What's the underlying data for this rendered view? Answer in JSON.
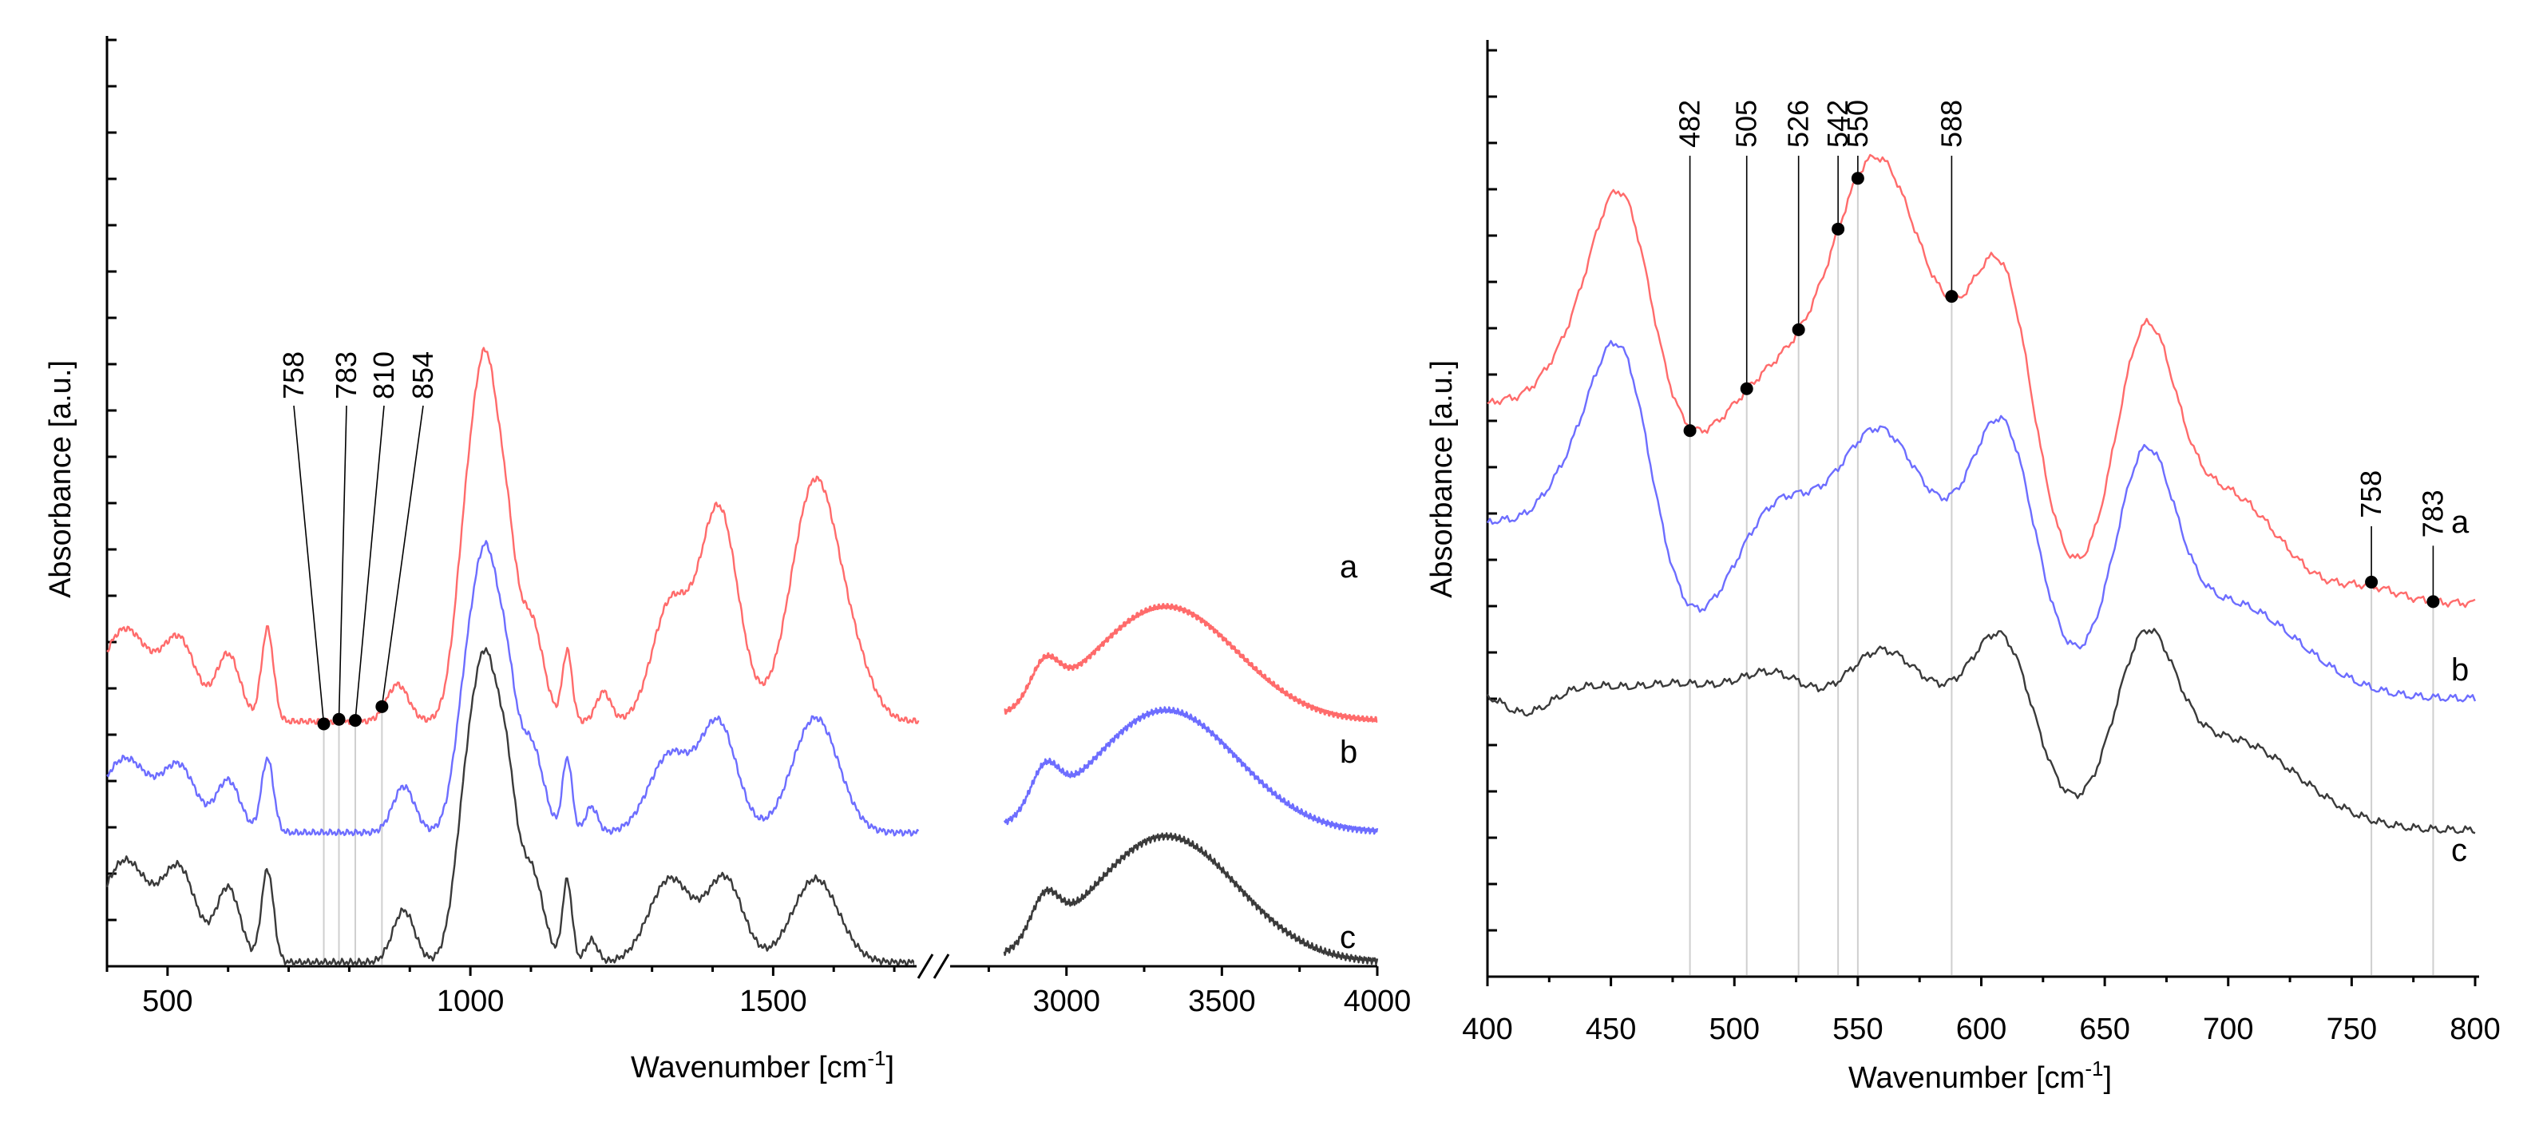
{
  "colors": {
    "a": "#ff6b6b",
    "b": "#6d6dff",
    "c": "#3a3a3a",
    "axis": "#000000",
    "guide": "#cfcfcf"
  },
  "chart_data": [
    {
      "type": "line",
      "title": "",
      "xlabel_main": "Wavenumber [cm",
      "xlabel_sup": "-1",
      "xlabel_end": "]",
      "ylabel": "Absorbance [a.u.]",
      "x_axis_break": true,
      "x_segments": [
        {
          "xlim": [
            400,
            1750
          ]
        },
        {
          "xlim": [
            2600,
            4000
          ]
        }
      ],
      "xticks": [
        "500",
        "1000",
        "1500",
        "3000",
        "3500",
        "4000"
      ],
      "series": [
        {
          "name": "a",
          "color": "#ff6b6b",
          "offset": 1.3,
          "bands": [
            [
              430,
              0.5,
              40
            ],
            [
              520,
              0.42,
              28
            ],
            [
              600,
              0.36,
              20
            ],
            [
              665,
              0.5,
              10
            ],
            [
              880,
              0.2,
              18
            ],
            [
              1000,
              1.2,
              22
            ],
            [
              1030,
              1.35,
              18
            ],
            [
              1060,
              0.85,
              16
            ],
            [
              1100,
              0.55,
              20
            ],
            [
              1160,
              0.38,
              8
            ],
            [
              1220,
              0.16,
              12
            ],
            [
              1330,
              0.62,
              30
            ],
            [
              1410,
              1.15,
              32
            ],
            [
              1570,
              1.3,
              40
            ],
            [
              1640,
              0.18,
              30
            ],
            [
              2930,
              0.2,
              45
            ],
            [
              3320,
              0.62,
              230
            ]
          ]
        },
        {
          "name": "b",
          "color": "#6d6dff",
          "offset": 0.7,
          "bands": [
            [
              430,
              0.4,
              40
            ],
            [
              520,
              0.34,
              28
            ],
            [
              600,
              0.28,
              20
            ],
            [
              665,
              0.4,
              10
            ],
            [
              890,
              0.25,
              18
            ],
            [
              1000,
              0.92,
              22
            ],
            [
              1030,
              1.05,
              18
            ],
            [
              1060,
              0.72,
              16
            ],
            [
              1100,
              0.48,
              20
            ],
            [
              1160,
              0.4,
              8
            ],
            [
              1200,
              0.14,
              10
            ],
            [
              1330,
              0.42,
              35
            ],
            [
              1410,
              0.58,
              30
            ],
            [
              1570,
              0.62,
              38
            ],
            [
              2930,
              0.22,
              45
            ],
            [
              3320,
              0.66,
              230
            ]
          ]
        },
        {
          "name": "c",
          "color": "#3a3a3a",
          "offset": 0.0,
          "bands": [
            [
              430,
              0.55,
              40
            ],
            [
              520,
              0.48,
              28
            ],
            [
              600,
              0.4,
              20
            ],
            [
              665,
              0.5,
              10
            ],
            [
              890,
              0.28,
              18
            ],
            [
              1000,
              1.05,
              22
            ],
            [
              1030,
              1.1,
              18
            ],
            [
              1060,
              0.86,
              16
            ],
            [
              1100,
              0.5,
              20
            ],
            [
              1160,
              0.44,
              8
            ],
            [
              1200,
              0.12,
              10
            ],
            [
              1330,
              0.45,
              35
            ],
            [
              1420,
              0.45,
              30
            ],
            [
              1570,
              0.45,
              38
            ],
            [
              2930,
              0.22,
              45
            ],
            [
              3320,
              0.68,
              230
            ]
          ]
        }
      ],
      "annotations": [
        {
          "label": "758",
          "x": 758,
          "series": "a"
        },
        {
          "label": "783",
          "x": 783,
          "series": "a"
        },
        {
          "label": "810",
          "x": 810,
          "series": "a"
        },
        {
          "label": "854",
          "x": 854,
          "series": "a"
        }
      ],
      "series_labels": [
        "a",
        "b",
        "c"
      ]
    },
    {
      "type": "line",
      "title": "",
      "xlabel_main": "Wavenumber [cm",
      "xlabel_sup": "-1",
      "xlabel_end": "]",
      "ylabel": "Absorbance [a.u.]",
      "xlim": [
        400,
        800
      ],
      "xticks": [
        "400",
        "450",
        "500",
        "550",
        "600",
        "650",
        "700",
        "750",
        "800"
      ],
      "series": [
        {
          "name": "a",
          "color": "#ff6b6b",
          "offset": 0.95,
          "bands": [
            [
              395,
              0.4,
              12
            ],
            [
              435,
              1.0,
              28
            ],
            [
              455,
              0.84,
              12
            ],
            [
              520,
              0.95,
              30
            ],
            [
              556,
              1.02,
              16
            ],
            [
              585,
              0.9,
              22
            ],
            [
              610,
              0.9,
              12
            ],
            [
              666,
              1.0,
              12
            ],
            [
              698,
              0.46,
              22
            ],
            [
              757,
              0.06,
              12
            ]
          ]
        },
        {
          "name": "b",
          "color": "#6d6dff",
          "offset": 0.55,
          "bands": [
            [
              395,
              0.4,
              12
            ],
            [
              435,
              0.9,
              26
            ],
            [
              455,
              0.78,
              12
            ],
            [
              518,
              0.78,
              20
            ],
            [
              557,
              0.78,
              16
            ],
            [
              590,
              0.6,
              24
            ],
            [
              610,
              0.72,
              12
            ],
            [
              666,
              0.85,
              12
            ],
            [
              700,
              0.4,
              28
            ]
          ]
        },
        {
          "name": "c",
          "color": "#3a3a3a",
          "offset": 0.0,
          "bands": [
            [
              395,
              0.4,
              12
            ],
            [
              435,
              0.55,
              24
            ],
            [
              480,
              0.46,
              20
            ],
            [
              518,
              0.55,
              18
            ],
            [
              557,
              0.55,
              16
            ],
            [
              590,
              0.45,
              22
            ],
            [
              610,
              0.5,
              12
            ],
            [
              666,
              0.65,
              12
            ],
            [
              700,
              0.38,
              28
            ]
          ]
        }
      ],
      "annotations": [
        {
          "label": "482",
          "x": 482,
          "series": "a"
        },
        {
          "label": "505",
          "x": 505,
          "series": "a"
        },
        {
          "label": "526",
          "x": 526,
          "series": "a"
        },
        {
          "label": "542",
          "x": 542,
          "series": "a"
        },
        {
          "label": "550",
          "x": 550,
          "series": "a"
        },
        {
          "label": "588",
          "x": 588,
          "series": "a"
        },
        {
          "label": "758",
          "x": 758,
          "series": "a"
        },
        {
          "label": "783",
          "x": 783,
          "series": "a"
        }
      ],
      "series_labels": [
        "a",
        "b",
        "c"
      ]
    }
  ]
}
